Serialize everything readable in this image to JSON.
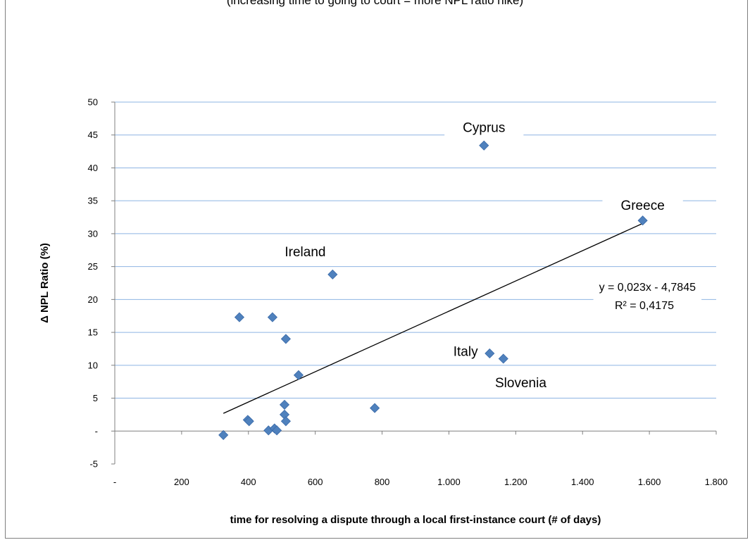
{
  "chart_data": {
    "type": "scatter",
    "title": "(increasing time to going to court = more NPL ratio hike)",
    "xlabel": "time for resolving a dispute through a local first-instance court  (# of days)",
    "ylabel": "Δ NPL Ratio (%)",
    "xlim": [
      0,
      1800
    ],
    "ylim": [
      -5,
      50
    ],
    "x_ticks": [
      {
        "value": 0,
        "label": "-"
      },
      {
        "value": 200,
        "label": "200"
      },
      {
        "value": 400,
        "label": "400"
      },
      {
        "value": 600,
        "label": "600"
      },
      {
        "value": 800,
        "label": "800"
      },
      {
        "value": 1000,
        "label": "1.000"
      },
      {
        "value": 1200,
        "label": "1.200"
      },
      {
        "value": 1400,
        "label": "1.400"
      },
      {
        "value": 1600,
        "label": "1.600"
      },
      {
        "value": 1800,
        "label": "1.800"
      }
    ],
    "y_ticks": [
      {
        "value": -5,
        "label": "-5"
      },
      {
        "value": 0,
        "label": "-"
      },
      {
        "value": 5,
        "label": "5"
      },
      {
        "value": 10,
        "label": "10"
      },
      {
        "value": 15,
        "label": "15"
      },
      {
        "value": 20,
        "label": "20"
      },
      {
        "value": 25,
        "label": "25"
      },
      {
        "value": 30,
        "label": "30"
      },
      {
        "value": 35,
        "label": "35"
      },
      {
        "value": 40,
        "label": "40"
      },
      {
        "value": 45,
        "label": "45"
      },
      {
        "value": 50,
        "label": "50"
      }
    ],
    "grid": "horizontal",
    "marker_color": "#4f81bd",
    "points": [
      {
        "x": 325,
        "y": -0.6
      },
      {
        "x": 373,
        "y": 17.3
      },
      {
        "x": 398,
        "y": 1.7
      },
      {
        "x": 402,
        "y": 1.5
      },
      {
        "x": 460,
        "y": 0.1
      },
      {
        "x": 472,
        "y": 17.3
      },
      {
        "x": 478,
        "y": 0.4
      },
      {
        "x": 485,
        "y": 0.1
      },
      {
        "x": 508,
        "y": 4.0
      },
      {
        "x": 508,
        "y": 2.5
      },
      {
        "x": 512,
        "y": 1.5
      },
      {
        "x": 512,
        "y": 14.0
      },
      {
        "x": 550,
        "y": 8.5
      },
      {
        "x": 652,
        "y": 23.8
      },
      {
        "x": 778,
        "y": 3.5
      },
      {
        "x": 1105,
        "y": 43.4
      },
      {
        "x": 1122,
        "y": 11.8
      },
      {
        "x": 1163,
        "y": 11.0
      },
      {
        "x": 1580,
        "y": 32.0
      }
    ],
    "annotations": [
      {
        "text": "Cyprus",
        "x": 1105,
        "y": 46.2
      },
      {
        "text": "Greece",
        "x": 1580,
        "y": 34.4
      },
      {
        "text": "Ireland",
        "x": 570,
        "y": 27.3
      },
      {
        "text": "Italy",
        "x": 1050,
        "y": 12.2
      },
      {
        "text": "Slovenia",
        "x": 1215,
        "y": 7.4
      }
    ],
    "trendline": {
      "x_start": 325,
      "x_end": 1580,
      "slope": 0.023,
      "intercept": -4.7845,
      "equation": "y = 0,023x - 4,7845",
      "r_squared": "R² = 0,4175"
    }
  }
}
